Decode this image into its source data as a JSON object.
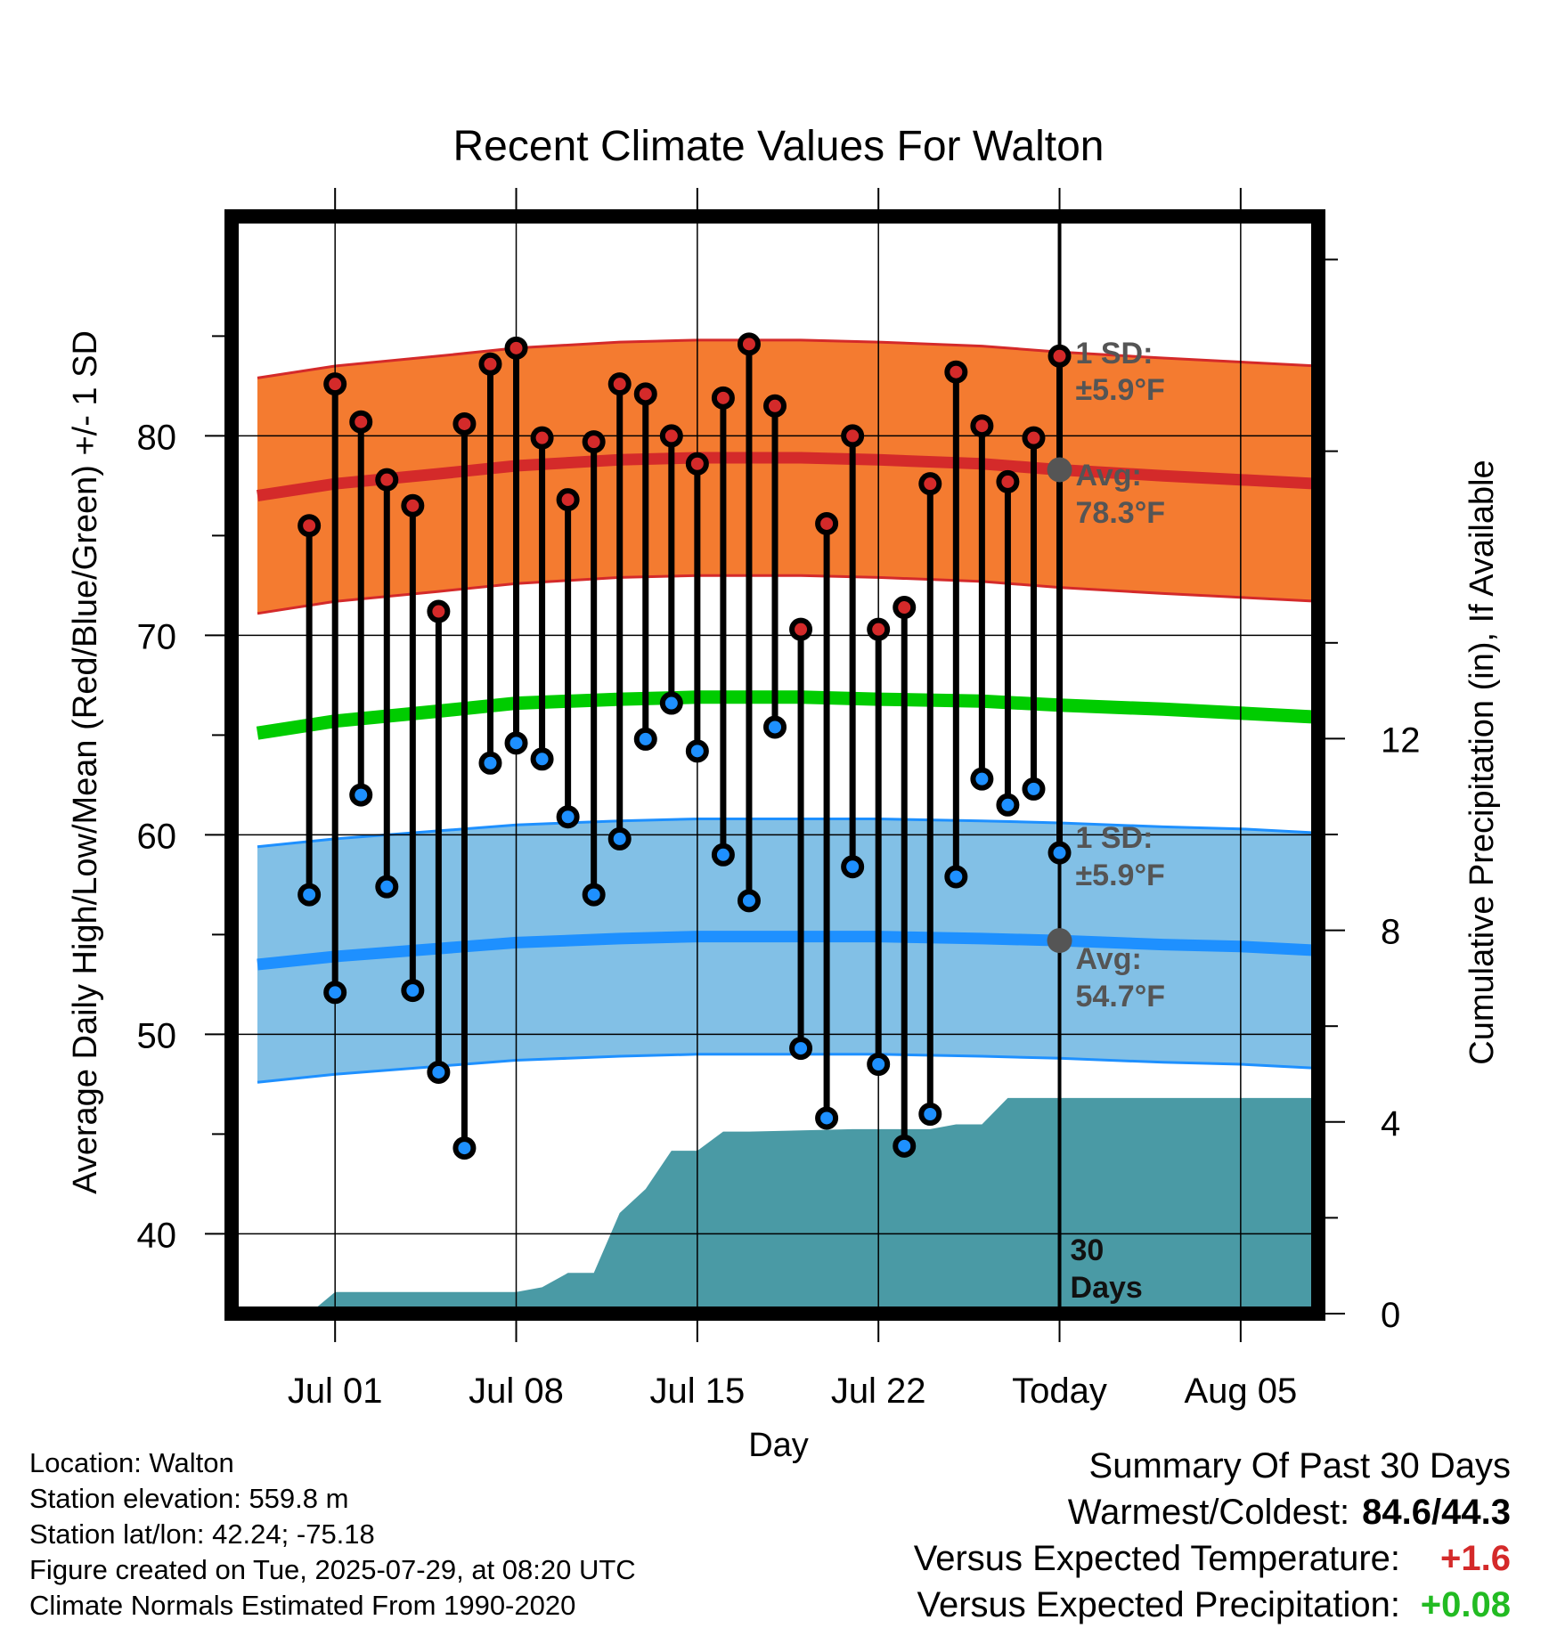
{
  "chart_data": {
    "type": "line",
    "title": "Recent Climate Values For Walton",
    "xlabel": "Day",
    "ylabel": "Average Daily High/Low/Mean (Red/Blue/Green) +/- 1 SD",
    "y2label": "Cumulative Precipitation (in), If Available",
    "ylim": [
      36,
      91
    ],
    "y2lim": [
      0,
      22.9
    ],
    "y_ticks": [
      40,
      50,
      60,
      70,
      80
    ],
    "y2_ticks": [
      0,
      4,
      8,
      12
    ],
    "x_tick_labels": [
      "Jul 01",
      "Jul 08",
      "Jul 15",
      "Jul 22",
      "Today",
      "Aug 05"
    ],
    "xlim": [
      "2025-06-27",
      "2025-08-08"
    ],
    "x_ticks": [
      "2025-07-01",
      "2025-07-08",
      "2025-07-15",
      "2025-07-22",
      "2025-07-29",
      "2025-08-05"
    ],
    "today": "2025-07-29",
    "grid": true,
    "dates": [
      "2025-06-30",
      "2025-07-01",
      "2025-07-02",
      "2025-07-03",
      "2025-07-04",
      "2025-07-05",
      "2025-07-06",
      "2025-07-07",
      "2025-07-08",
      "2025-07-09",
      "2025-07-10",
      "2025-07-11",
      "2025-07-12",
      "2025-07-13",
      "2025-07-14",
      "2025-07-15",
      "2025-07-16",
      "2025-07-17",
      "2025-07-18",
      "2025-07-19",
      "2025-07-20",
      "2025-07-21",
      "2025-07-22",
      "2025-07-23",
      "2025-07-24",
      "2025-07-25",
      "2025-07-26",
      "2025-07-27",
      "2025-07-28",
      "2025-07-29"
    ],
    "series": [
      {
        "name": "High",
        "color": "#d42a2a",
        "values": [
          75.5,
          82.6,
          80.7,
          77.8,
          76.5,
          71.2,
          80.6,
          83.6,
          84.4,
          79.9,
          76.8,
          79.7,
          82.6,
          82.1,
          80.0,
          78.6,
          81.9,
          84.6,
          81.5,
          70.3,
          75.6,
          80.0,
          70.3,
          71.4,
          77.6,
          83.2,
          80.5,
          77.7,
          79.9,
          84.0
        ]
      },
      {
        "name": "Low",
        "color": "#1e90ff",
        "values": [
          57.0,
          52.1,
          62.0,
          57.4,
          52.2,
          48.1,
          44.3,
          63.6,
          64.6,
          63.8,
          60.9,
          57.0,
          59.8,
          64.8,
          66.6,
          64.2,
          59.0,
          56.7,
          65.4,
          49.3,
          45.8,
          58.4,
          48.5,
          44.4,
          46.0,
          57.9,
          62.8,
          61.5,
          62.3,
          59.1
        ]
      }
    ],
    "normals": {
      "dates": [
        "2025-06-28",
        "2025-07-01",
        "2025-07-05",
        "2025-07-08",
        "2025-07-12",
        "2025-07-15",
        "2025-07-19",
        "2025-07-22",
        "2025-07-26",
        "2025-07-29",
        "2025-08-02",
        "2025-08-05",
        "2025-08-08"
      ],
      "high_avg": [
        77.0,
        77.6,
        78.1,
        78.5,
        78.8,
        78.9,
        78.9,
        78.8,
        78.6,
        78.3,
        78.0,
        77.8,
        77.6
      ],
      "low_avg": [
        53.5,
        53.9,
        54.3,
        54.6,
        54.8,
        54.9,
        54.9,
        54.9,
        54.8,
        54.7,
        54.5,
        54.4,
        54.2
      ],
      "mean_avg": [
        65.1,
        65.7,
        66.2,
        66.6,
        66.8,
        66.9,
        66.9,
        66.8,
        66.7,
        66.5,
        66.3,
        66.1,
        65.9
      ],
      "sd": 5.9,
      "high_color": "#f47b30",
      "high_line_color": "#d42a2a",
      "low_color": "#82c0e6",
      "low_line_color": "#1e90ff",
      "mean_color": "#00cc00"
    },
    "precip": {
      "color": "#4a9aa5",
      "dates": [
        "2025-06-29",
        "2025-06-30",
        "2025-07-01",
        "2025-07-08",
        "2025-07-09",
        "2025-07-10",
        "2025-07-11",
        "2025-07-12",
        "2025-07-13",
        "2025-07-14",
        "2025-07-15",
        "2025-07-16",
        "2025-07-17",
        "2025-07-21",
        "2025-07-24",
        "2025-07-25",
        "2025-07-26",
        "2025-07-27",
        "2025-07-28",
        "2025-08-08"
      ],
      "values": [
        0.0,
        0.0,
        0.45,
        0.45,
        0.55,
        0.85,
        0.85,
        2.1,
        2.6,
        3.4,
        3.4,
        3.8,
        3.8,
        3.85,
        3.85,
        3.95,
        3.95,
        4.5,
        4.5,
        4.5
      ]
    },
    "annotations": {
      "high_sd": "1 SD:",
      "high_sd_val": "±5.9°F",
      "high_avg_label": "Avg:",
      "high_avg_val": "78.3°F",
      "high_avg_marker": 78.3,
      "low_sd": "1 SD:",
      "low_sd_val": "±5.9°F",
      "low_avg_label": "Avg:",
      "low_avg_val": "54.7°F",
      "low_avg_marker": 54.7,
      "days_1": "30",
      "days_2": "Days"
    }
  },
  "info": {
    "location": "Location: Walton",
    "elevation": "Station elevation: 559.8 m",
    "latlon": "Station lat/lon: 42.24; -75.18",
    "created": "Figure created on Tue, 2025-07-29, at 08:20 UTC",
    "normals": "Climate Normals Estimated From 1990-2020"
  },
  "summary": {
    "heading": "Summary Of Past 30 Days",
    "warm_cold_label": "Warmest/Coldest:",
    "warm_cold_value": "84.6/44.3",
    "temp_label": "Versus Expected Temperature:",
    "temp_value": "+1.6",
    "temp_color": "#d42a2a",
    "precip_label": "Versus Expected Precipitation:",
    "precip_value": "+0.08",
    "precip_color": "#22bb22"
  }
}
